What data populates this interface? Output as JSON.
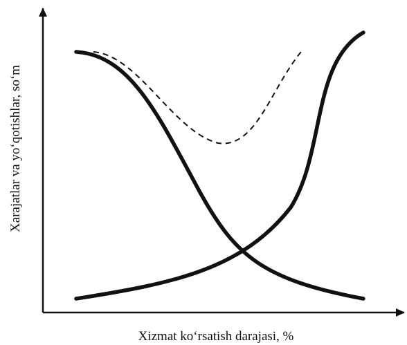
{
  "x_axis": {
    "label": "Xizmat ko‘rsatish darajasi, %"
  },
  "y_axis": {
    "label": "Xarajatlar va yo‘qotishlar, so‘m"
  }
}
